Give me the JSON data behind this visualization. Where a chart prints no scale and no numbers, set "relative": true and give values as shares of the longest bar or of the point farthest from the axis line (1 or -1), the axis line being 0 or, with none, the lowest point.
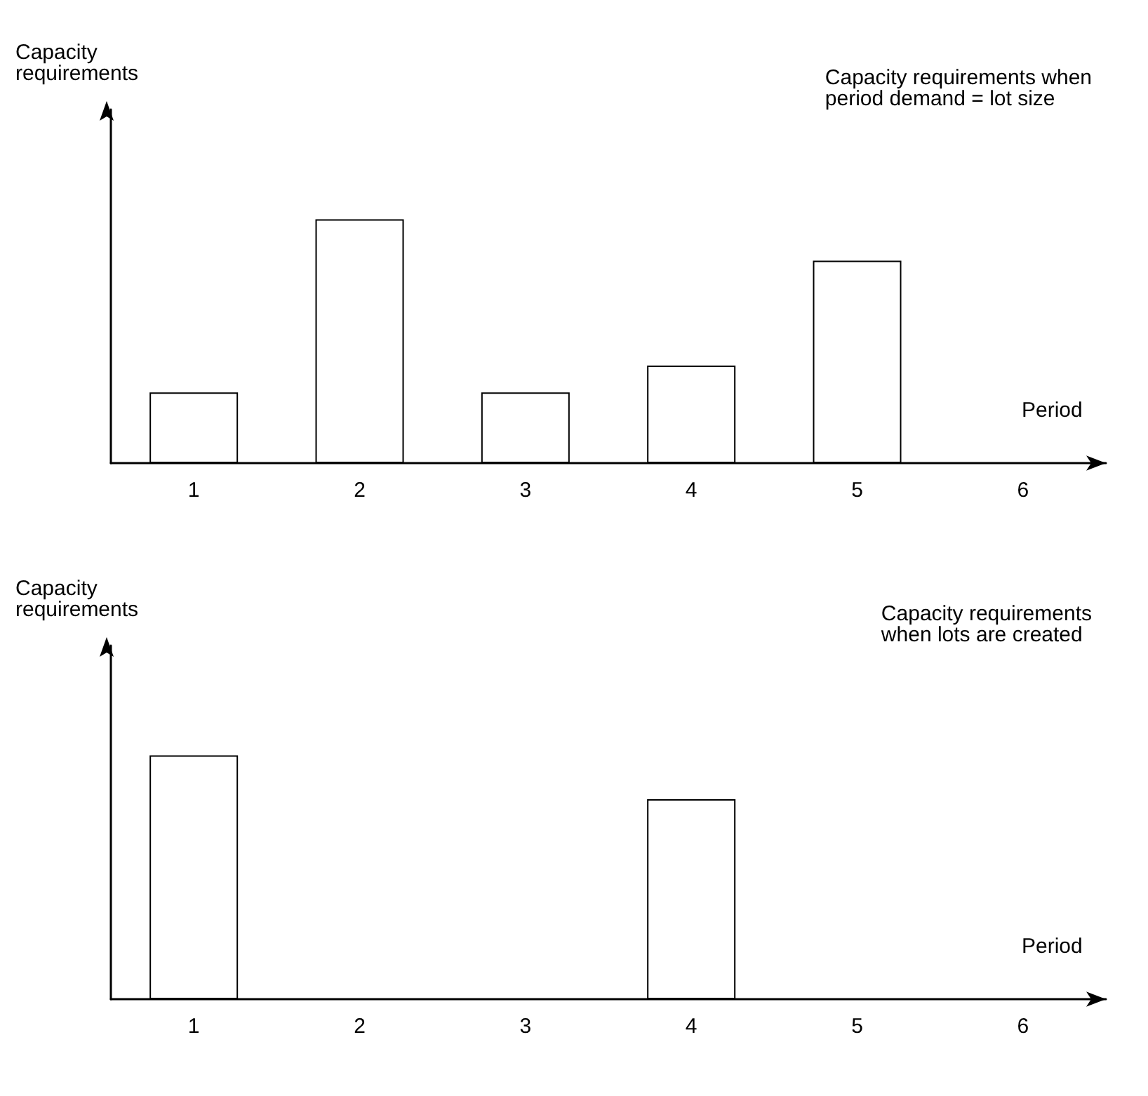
{
  "chart_data": [
    {
      "type": "bar",
      "relative": true,
      "xlabel": "Period",
      "ylabel": "Capacity requirements",
      "categories": [
        "1",
        "2",
        "3",
        "4",
        "5",
        "6"
      ],
      "values": [
        0.29,
        1,
        0.29,
        0.4,
        0.83,
        null
      ],
      "color": "#ffffff",
      "annotations": [
        "Capacity requirements when\nperiod demand = lot size"
      ]
    },
    {
      "type": "bar",
      "relative": true,
      "xlabel": "Period",
      "ylabel": "Capacity requirements",
      "categories": [
        "1",
        "2",
        "3",
        "4",
        "5",
        "6"
      ],
      "values": [
        1,
        null,
        null,
        0.82,
        null,
        null
      ],
      "color": "#ffffff",
      "annotations": [
        "Capacity requirements\nwhen lots are created"
      ]
    }
  ]
}
